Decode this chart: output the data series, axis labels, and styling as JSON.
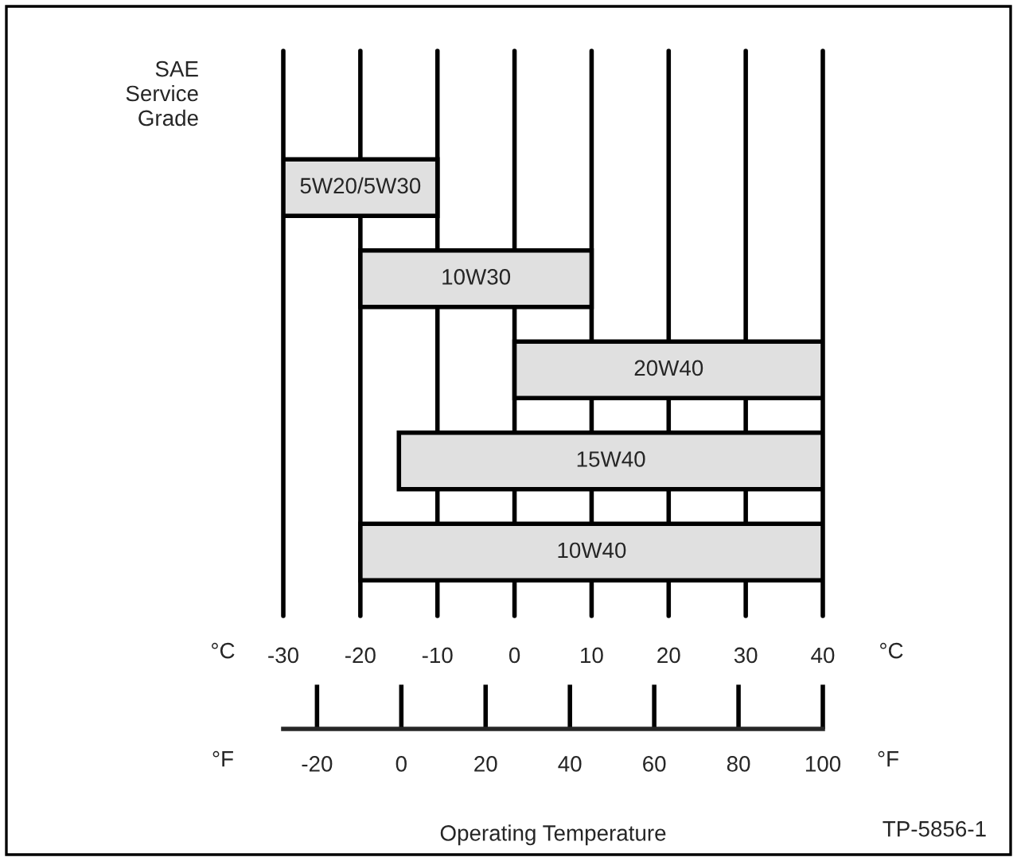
{
  "chart_data": {
    "type": "bar",
    "orientation": "horizontal",
    "ylabel": "SAE\nService\nGrade",
    "categories": [
      "5W20/5W30",
      "10W30",
      "20W40",
      "15W40",
      "10W40"
    ],
    "base": [
      -30,
      -20,
      0,
      -15,
      -20
    ],
    "values": [
      20,
      30,
      40,
      55,
      60
    ],
    "color": "#e0e0e0",
    "xlim": [
      -30,
      40
    ],
    "xticks": [
      -30,
      -20,
      -10,
      0,
      10,
      20,
      30,
      40
    ],
    "x2lim": [
      -28,
      100
    ],
    "x2ticks": [
      -20,
      0,
      20,
      40,
      60,
      80,
      100
    ],
    "x2label": "Operating Temperature",
    "grid": "x",
    "annotations": [
      "°C",
      "°C",
      "°F",
      "°F",
      "TP-5856-1"
    ]
  }
}
